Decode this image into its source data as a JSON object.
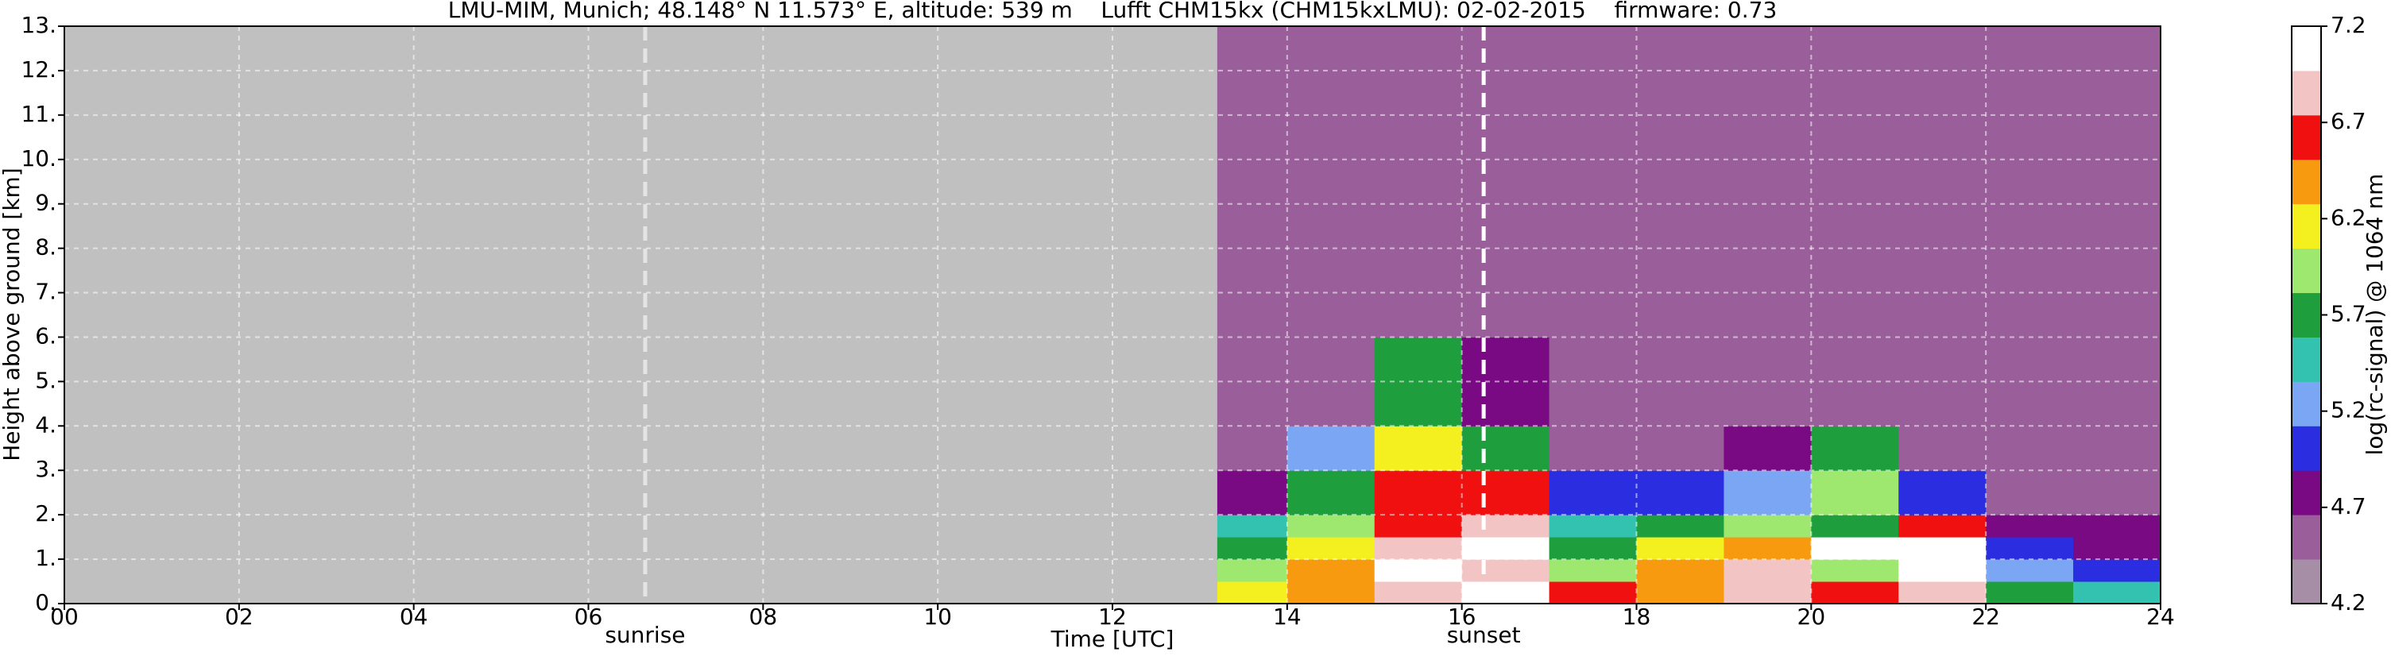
{
  "chart_data": {
    "type": "heatmap",
    "title": "LMU-MIM, Munich; 48.148° N 11.573° E, altitude: 539 m    Lufft CHM15kx (CHM15kxLMU): 02-02-2015    firmware: 0.73",
    "x_label": "Time [UTC]",
    "y_label": "Height above ground [km]",
    "colorbar_label": "log(rc-signal) @ 1064 nm",
    "xlim": [
      0,
      24
    ],
    "xticks": [
      {
        "value": 0,
        "label": "00"
      },
      {
        "value": 2,
        "label": "02"
      },
      {
        "value": 4,
        "label": "04"
      },
      {
        "value": 6,
        "label": "06"
      },
      {
        "value": 8,
        "label": "08"
      },
      10,
      12,
      14,
      16,
      18,
      20,
      22,
      24
    ],
    "ylim": [
      0,
      13
    ],
    "yticks": [
      {
        "value": 0,
        "label": "0."
      },
      {
        "value": 1,
        "label": "1."
      },
      {
        "value": 2,
        "label": "2."
      },
      {
        "value": 3,
        "label": "3."
      },
      {
        "value": 4,
        "label": "4."
      },
      {
        "value": 5,
        "label": "5."
      },
      {
        "value": 6,
        "label": "6."
      },
      {
        "value": 7,
        "label": "7."
      },
      {
        "value": 8,
        "label": "8."
      },
      {
        "value": 9,
        "label": "9."
      },
      {
        "value": 10,
        "label": "10."
      },
      {
        "value": 11,
        "label": "11."
      },
      {
        "value": 12,
        "label": "12."
      },
      {
        "value": 13,
        "label": "13."
      }
    ],
    "zlim": [
      4.2,
      7.2
    ],
    "zticks": [
      4.2,
      4.7,
      5.2,
      5.7,
      6.2,
      6.7,
      7.2
    ],
    "colorscale": [
      "#a68ea6",
      "#9a5f9a",
      "#7a0a84",
      "#2a2ee0",
      "#7aa6f4",
      "#33c2b0",
      "#1e9e3c",
      "#9ee870",
      "#f4f020",
      "#f89a10",
      "#f01010",
      "#f2c4c4",
      "#ffffff"
    ],
    "grid": true,
    "x_edges": [
      13.2,
      14,
      15,
      16,
      17,
      18,
      19,
      20,
      21,
      22,
      23,
      24
    ],
    "y_edges": [
      0,
      0.5,
      1,
      1.5,
      2,
      3,
      4,
      6,
      13
    ],
    "z": [
      [
        6.2,
        6.5,
        6.8,
        7.0,
        6.6,
        6.5,
        6.8,
        6.6,
        6.8,
        5.6,
        5.4
      ],
      [
        6.0,
        6.3,
        7.0,
        6.8,
        6.0,
        6.4,
        6.8,
        6.0,
        7.0,
        5.2,
        5.0
      ],
      [
        5.8,
        6.2,
        6.9,
        7.0,
        5.8,
        6.2,
        6.5,
        7.0,
        7.2,
        5.0,
        4.8
      ],
      [
        5.5,
        5.9,
        6.6,
        6.8,
        5.4,
        5.6,
        5.9,
        5.8,
        6.6,
        4.8,
        4.7
      ],
      [
        4.8,
        5.6,
        6.6,
        6.6,
        4.9,
        5.0,
        5.2,
        6.0,
        4.9,
        4.6,
        4.5
      ],
      [
        4.6,
        5.2,
        6.2,
        5.8,
        4.6,
        4.6,
        4.7,
        5.6,
        4.6,
        4.5,
        4.5
      ],
      [
        4.5,
        4.6,
        5.6,
        4.8,
        4.5,
        4.5,
        4.5,
        4.6,
        4.5,
        4.5,
        4.5
      ],
      [
        4.5,
        4.5,
        4.5,
        4.5,
        4.5,
        4.5,
        4.5,
        4.5,
        4.5,
        4.5,
        4.5
      ]
    ],
    "annotations": [
      {
        "text": "sunrise",
        "x": 6.65
      },
      {
        "text": "sunset",
        "x": 16.25
      }
    ]
  }
}
